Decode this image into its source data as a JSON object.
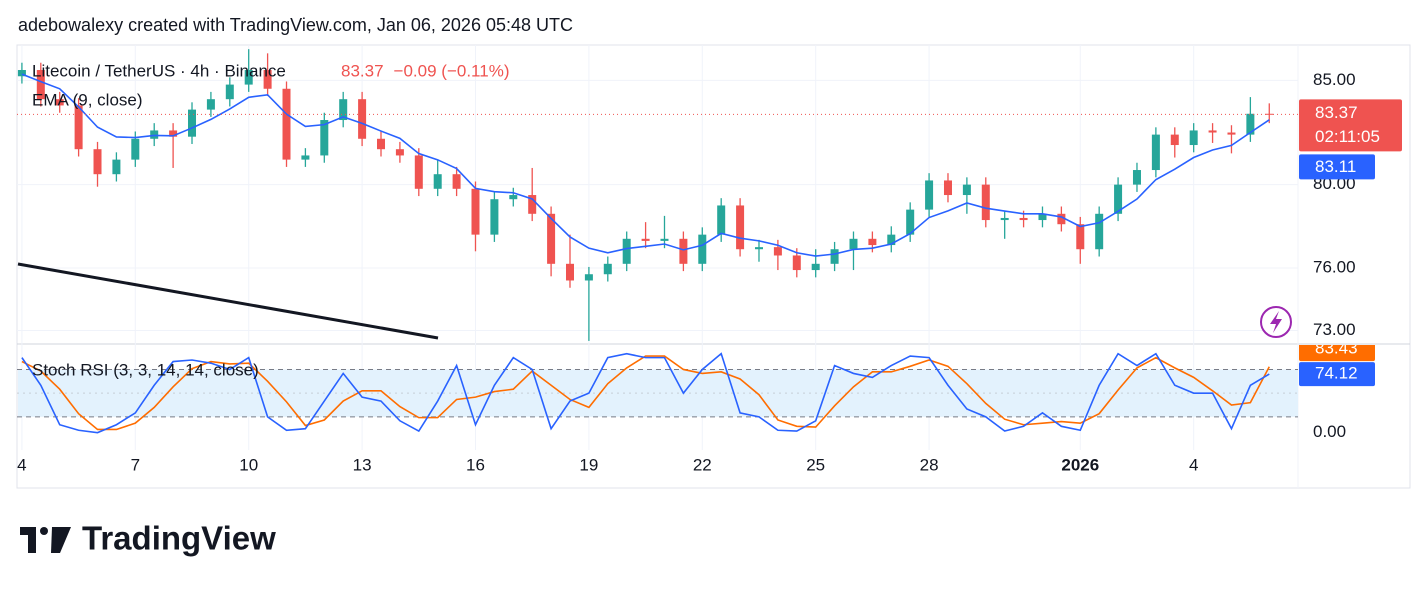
{
  "header": "adebowalexy created with TradingView.com, Jan 06, 2026 05:48 UTC",
  "chart_data": {
    "type": "candlestick",
    "legend": {
      "symbol": "Litecoin / TetherUS · 4h · Binance",
      "price": "83.37",
      "change": "−0.09 (−0.11%)"
    },
    "x": [
      0,
      0.5,
      1,
      1.5,
      2,
      2.5,
      3,
      3.5,
      4,
      4.5,
      5,
      5.5,
      6,
      6.5,
      7,
      7.5,
      8,
      8.5,
      9,
      9.5,
      10,
      10.5,
      11,
      11.5,
      12,
      12.5,
      13,
      13.5,
      14,
      14.5,
      15,
      15.5,
      16,
      16.5,
      17,
      17.5,
      18,
      18.5,
      19,
      19.5,
      20,
      20.5,
      21,
      21.5,
      22,
      22.5,
      23,
      23.5,
      24,
      24.5,
      25,
      25.5,
      26,
      26.5,
      27,
      27.5,
      28,
      28.5,
      29,
      29.5,
      30,
      30.5,
      31,
      31.5,
      32,
      32.5,
      33
    ],
    "open": [
      85.2,
      85.5,
      84.1,
      83.8,
      81.7,
      80.5,
      81.2,
      82.2,
      82.6,
      82.3,
      83.6,
      84.1,
      84.8,
      85.5,
      84.6,
      81.2,
      81.4,
      83.1,
      84.1,
      82.2,
      81.7,
      81.4,
      79.8,
      80.5,
      79.8,
      77.6,
      79.3,
      79.5,
      78.6,
      76.2,
      75.4,
      75.7,
      76.2,
      77.4,
      77.3,
      77.4,
      76.2,
      77.6,
      79.0,
      76.9,
      77.0,
      76.6,
      75.9,
      76.2,
      76.9,
      77.4,
      77.1,
      77.6,
      78.8,
      80.2,
      79.5,
      80.0,
      78.3,
      78.4,
      78.3,
      78.6,
      78.1,
      76.9,
      78.6,
      80.0,
      80.7,
      82.4,
      81.9,
      82.6,
      82.5,
      82.4,
      83.4
    ],
    "high": [
      85.85,
      85.85,
      84.45,
      84.15,
      82.05,
      81.55,
      82.55,
      82.95,
      82.95,
      83.95,
      84.45,
      85.15,
      86.5,
      86.3,
      84.95,
      81.75,
      83.45,
      84.45,
      84.45,
      82.55,
      82.05,
      81.75,
      81.2,
      80.85,
      80.15,
      79.65,
      79.85,
      80.8,
      78.95,
      77.6,
      76.05,
      76.55,
      77.75,
      78.2,
      78.5,
      77.75,
      77.95,
      79.35,
      79.35,
      77.35,
      77.35,
      76.95,
      76.9,
      77.25,
      77.75,
      77.75,
      78.0,
      79.15,
      80.55,
      80.55,
      80.35,
      80.35,
      78.75,
      78.75,
      78.95,
      78.95,
      78.45,
      78.95,
      80.35,
      81.05,
      82.75,
      82.75,
      82.95,
      82.95,
      82.85,
      84.2,
      83.9
    ],
    "low": [
      84.85,
      83.75,
      83.45,
      81.35,
      79.9,
      80.15,
      80.85,
      81.85,
      80.8,
      81.95,
      83.25,
      83.75,
      84.45,
      84.25,
      80.85,
      80.85,
      81.05,
      82.75,
      81.85,
      81.35,
      81.05,
      79.45,
      79.45,
      79.45,
      76.8,
      77.25,
      78.95,
      78.25,
      75.6,
      75.05,
      72.5,
      75.35,
      75.85,
      76.95,
      76.95,
      75.85,
      75.85,
      77.25,
      76.55,
      76.3,
      75.9,
      75.55,
      75.55,
      75.85,
      75.9,
      76.75,
      76.75,
      77.25,
      78.45,
      79.15,
      78.6,
      77.95,
      77.4,
      77.95,
      77.95,
      77.75,
      76.2,
      76.55,
      78.25,
      79.65,
      80.35,
      81.3,
      81.55,
      82.0,
      81.5,
      82.05,
      82.95
    ],
    "close": [
      85.5,
      84.1,
      83.8,
      81.7,
      80.5,
      81.2,
      82.2,
      82.6,
      82.3,
      83.6,
      84.1,
      84.8,
      85.5,
      84.6,
      81.2,
      81.4,
      83.1,
      84.1,
      82.2,
      81.7,
      81.4,
      79.8,
      80.5,
      79.8,
      77.6,
      79.3,
      79.5,
      78.6,
      76.2,
      75.4,
      75.7,
      76.2,
      77.4,
      77.3,
      77.4,
      76.2,
      77.6,
      79.0,
      76.9,
      77.0,
      76.6,
      75.9,
      76.2,
      76.9,
      77.4,
      77.1,
      77.6,
      78.8,
      80.2,
      79.5,
      80.0,
      78.3,
      78.4,
      78.3,
      78.6,
      78.1,
      76.9,
      78.6,
      80.0,
      80.7,
      82.4,
      81.9,
      82.6,
      82.5,
      82.4,
      83.4,
      83.37
    ],
    "up_color": "#26a69a",
    "down_color": "#ef5350",
    "xlim": [
      -0.13,
      33.76
    ],
    "xticks": [
      {
        "value": 0,
        "label": "4"
      },
      {
        "value": 3,
        "label": "7"
      },
      {
        "value": 6,
        "label": "10"
      },
      {
        "value": 9,
        "label": "13"
      },
      {
        "value": 12,
        "label": "16"
      },
      {
        "value": 15,
        "label": "19"
      },
      {
        "value": 18,
        "label": "22"
      },
      {
        "value": 21,
        "label": "25"
      },
      {
        "value": 24,
        "label": "28"
      },
      {
        "value": 28,
        "label": "2026",
        "bold": true
      },
      {
        "value": 31,
        "label": "4"
      }
    ],
    "ylim": [
      72.4,
      86.7
    ],
    "yticks": [
      {
        "value": 73,
        "label": "73.00"
      },
      {
        "value": 76,
        "label": "76.00"
      },
      {
        "value": 80,
        "label": "80.00"
      },
      {
        "value": 85,
        "label": "85.00"
      }
    ],
    "grid": true,
    "countdown": "02:11:05",
    "ema": {
      "name": "EMA (9, close)",
      "color": "#2962ff",
      "last_label": "83.11",
      "values": [
        85.3,
        84.94,
        84.6,
        83.73,
        82.76,
        82.29,
        82.26,
        82.36,
        82.34,
        82.72,
        83.13,
        83.63,
        84.19,
        84.31,
        83.38,
        82.79,
        82.88,
        83.25,
        82.94,
        82.57,
        82.22,
        81.49,
        81.19,
        80.77,
        79.82,
        79.66,
        79.61,
        79.31,
        78.38,
        77.49,
        76.95,
        76.73,
        76.93,
        77.04,
        77.15,
        76.87,
        77.09,
        77.66,
        77.43,
        77.3,
        77.09,
        76.73,
        76.57,
        76.67,
        76.89,
        76.95,
        77.15,
        77.65,
        78.42,
        78.74,
        79.12,
        78.87,
        78.73,
        78.6,
        78.6,
        78.45,
        77.99,
        78.17,
        78.72,
        79.31,
        80.24,
        80.74,
        81.3,
        81.66,
        81.88,
        82.5,
        83.11
      ]
    },
    "stoch": {
      "name": "Stoch RSI (3, 3, 14, 14, close)",
      "ylim": [
        -22,
        111
      ],
      "yticks": [
        {
          "value": 0,
          "label": "0.00"
        }
      ],
      "levels": [
        20,
        50,
        80
      ],
      "band_color": "#e3f2fd",
      "k": {
        "color": "#2962ff",
        "last_label": "74.12",
        "values": [
          95,
          60,
          10,
          3,
          0,
          10,
          25,
          60,
          90,
          92,
          88,
          80,
          95,
          20,
          3,
          5,
          40,
          75,
          45,
          40,
          15,
          2,
          40,
          85,
          10,
          60,
          95,
          80,
          5,
          40,
          50,
          95,
          100,
          95,
          95,
          50,
          80,
          100,
          25,
          20,
          3,
          2,
          15,
          85,
          75,
          70,
          85,
          97,
          95,
          60,
          30,
          20,
          2,
          8,
          25,
          8,
          3,
          60,
          100,
          85,
          100,
          60,
          50,
          50,
          5,
          60,
          74.12
        ]
      },
      "d": {
        "color": "#ff6d00",
        "last_label": "83.43",
        "values": [
          90,
          78,
          55,
          24,
          4,
          4,
          12,
          32,
          58,
          81,
          90,
          87,
          88,
          65,
          39,
          9,
          16,
          40,
          53,
          53,
          33,
          19,
          19,
          42,
          45,
          52,
          55,
          78,
          60,
          42,
          32,
          62,
          82,
          97,
          97,
          80,
          75,
          77,
          68,
          48,
          16,
          8,
          7,
          34,
          58,
          77,
          77,
          84,
          92,
          84,
          62,
          37,
          17,
          10,
          12,
          14,
          12,
          24,
          54,
          82,
          95,
          82,
          70,
          53,
          35,
          38,
          83.43
        ]
      }
    }
  },
  "footer": {
    "logo": "TradingView"
  }
}
